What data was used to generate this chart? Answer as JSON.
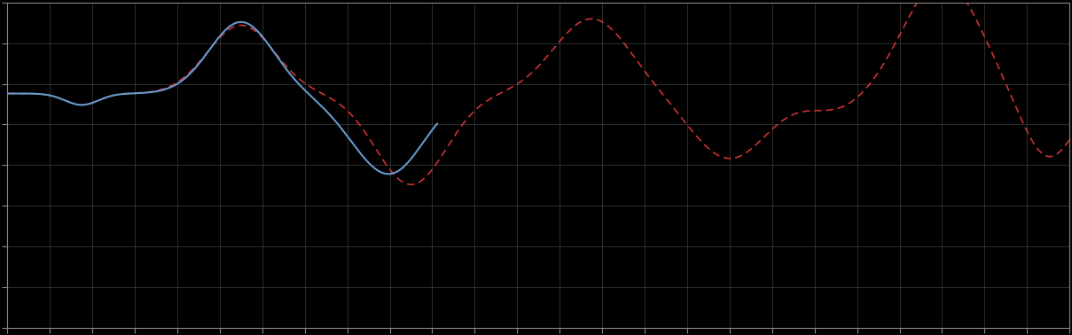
{
  "background_color": "#000000",
  "plot_bg_color": "#000000",
  "grid_color": "#404040",
  "blue_line_color": "#6699cc",
  "red_line_color": "#cc3333",
  "figsize": [
    12.09,
    3.78
  ],
  "dpi": 100,
  "xlim": [
    0,
    100
  ],
  "ylim": [
    0,
    10
  ],
  "n_xgrid": 25,
  "n_ygrid": 8,
  "spine_color": "#888888",
  "tick_color": "#888888"
}
